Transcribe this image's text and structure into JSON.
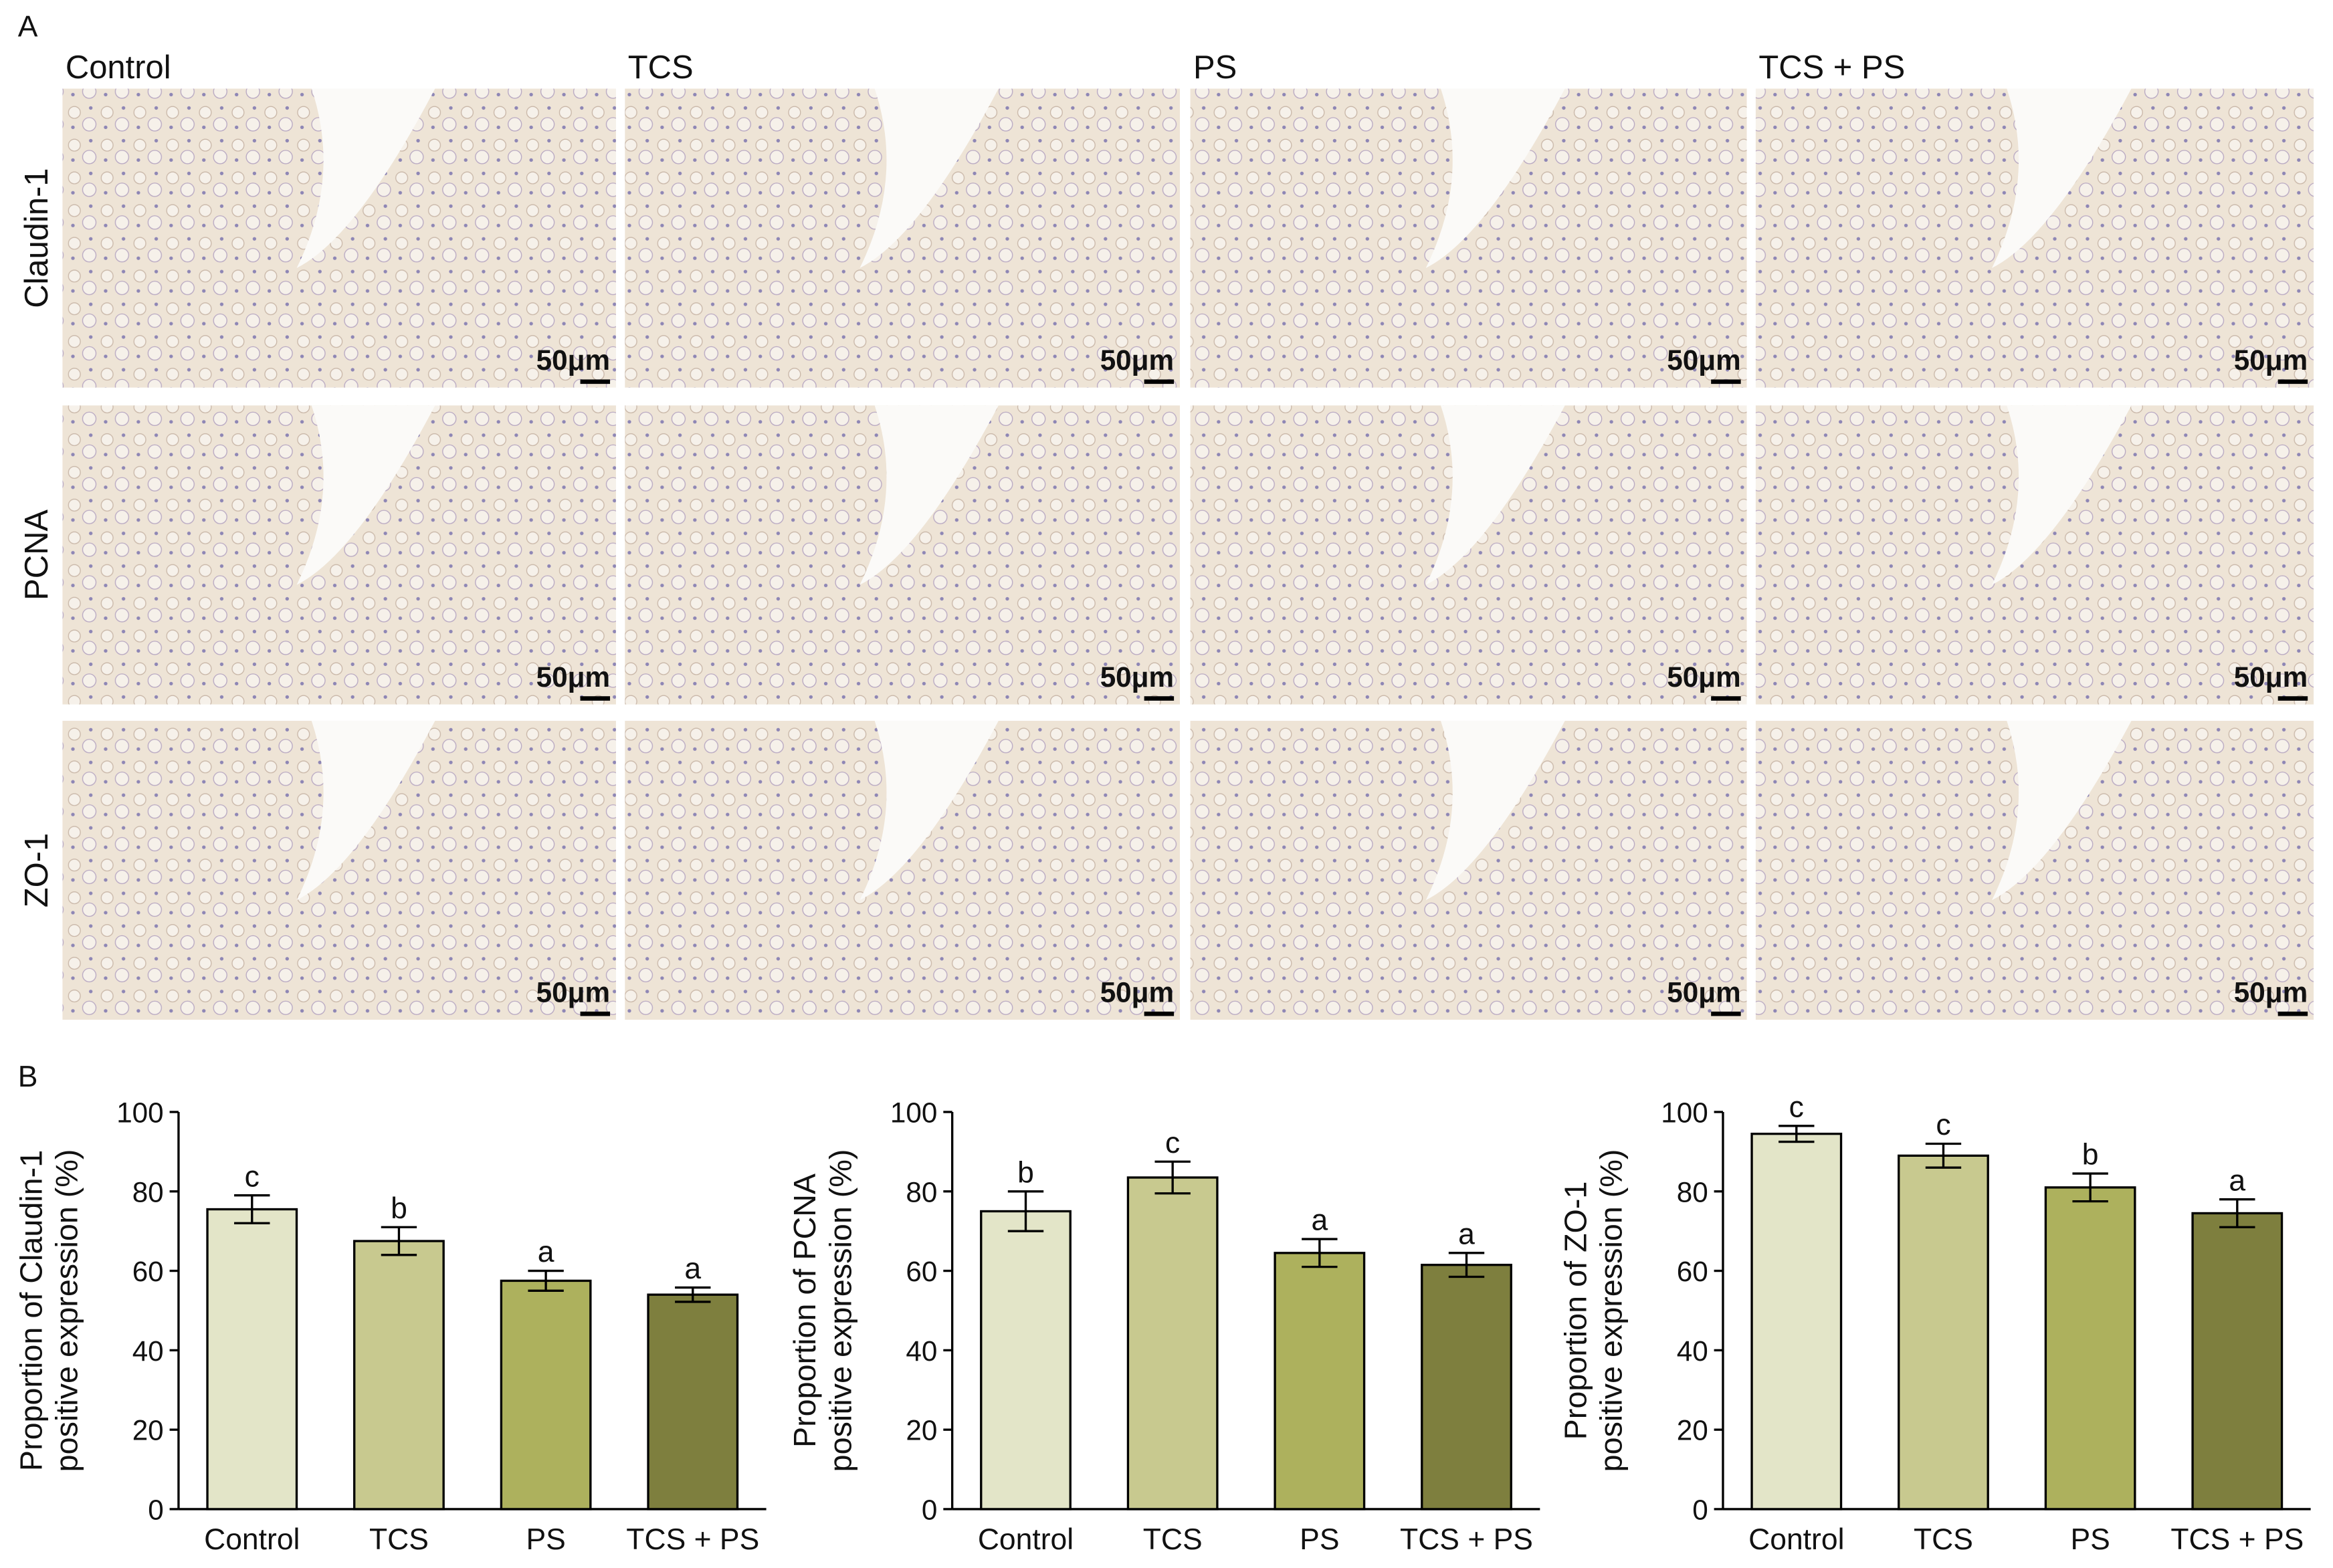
{
  "panel_a": {
    "label": "A",
    "columns": [
      "Control",
      "TCS",
      "PS",
      "TCS + PS"
    ],
    "rows": [
      "Claudin-1",
      "PCNA",
      "ZO-1"
    ],
    "scale_bar": "50μm"
  },
  "panel_b": {
    "label": "B"
  },
  "chart_data": [
    {
      "type": "bar",
      "ylabel": [
        "Proportion of Claudin-1",
        "positive expression (%)"
      ],
      "categories": [
        "Control",
        "TCS",
        "PS",
        "TCS + PS"
      ],
      "values": [
        75.5,
        67.5,
        57.5,
        54
      ],
      "errors": [
        3.5,
        3.5,
        2.5,
        1.8
      ],
      "letters": [
        "c",
        "b",
        "a",
        "a"
      ],
      "colors": [
        "#e3e5c8",
        "#c8c98f",
        "#adb15d",
        "#7e7f3e"
      ],
      "ylim": [
        0,
        100
      ],
      "yticks": [
        0,
        20,
        40,
        60,
        80,
        100
      ]
    },
    {
      "type": "bar",
      "ylabel": [
        "Proportion of PCNA",
        "positive expression (%)"
      ],
      "categories": [
        "Control",
        "TCS",
        "PS",
        "TCS + PS"
      ],
      "values": [
        75,
        83.5,
        64.5,
        61.5
      ],
      "errors": [
        5,
        4,
        3.5,
        3
      ],
      "letters": [
        "b",
        "c",
        "a",
        "a"
      ],
      "colors": [
        "#e3e5c8",
        "#c8c98f",
        "#adb15d",
        "#7e7f3e"
      ],
      "ylim": [
        0,
        100
      ],
      "yticks": [
        0,
        20,
        40,
        60,
        80,
        100
      ]
    },
    {
      "type": "bar",
      "ylabel": [
        "Proportion of ZO-1",
        "positive expression (%)"
      ],
      "categories": [
        "Control",
        "TCS",
        "PS",
        "TCS + PS"
      ],
      "values": [
        94.5,
        89,
        81,
        74.5
      ],
      "errors": [
        2,
        3,
        3.5,
        3.5
      ],
      "letters": [
        "c",
        "c",
        "b",
        "a"
      ],
      "colors": [
        "#e3e5c8",
        "#c8c98f",
        "#adb15d",
        "#7e7f3e"
      ],
      "ylim": [
        0,
        100
      ],
      "yticks": [
        0,
        20,
        40,
        60,
        80,
        100
      ]
    }
  ]
}
